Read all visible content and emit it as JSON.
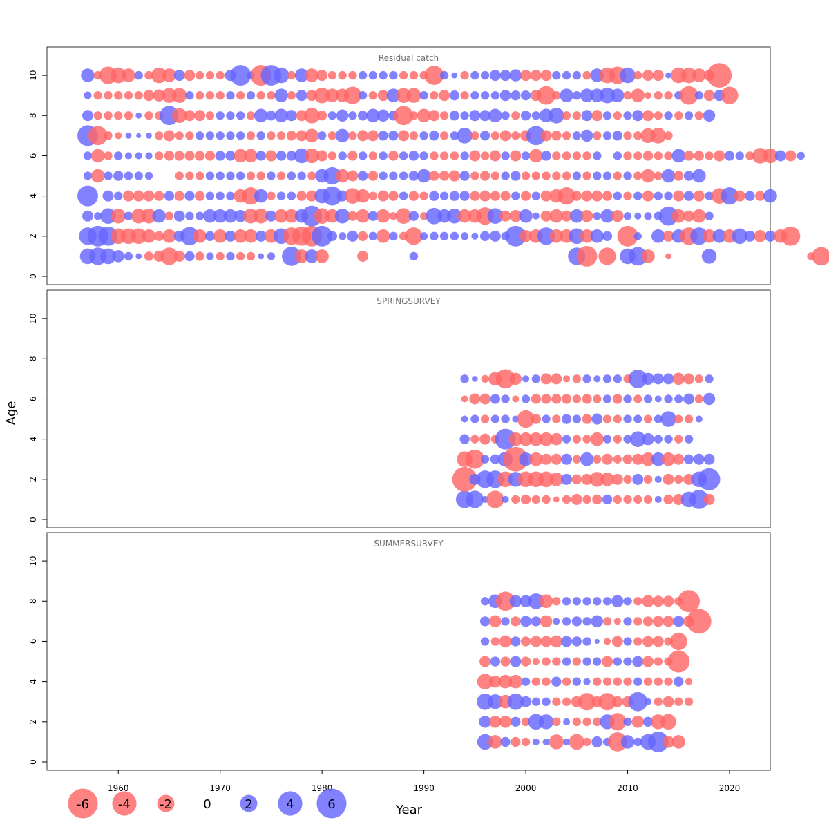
{
  "chart_data": {
    "type": "bubble",
    "xlabel": "Year",
    "ylabel": "Age",
    "xlim": [
      1953,
      2024
    ],
    "ylim": [
      0,
      11
    ],
    "x_ticks": [
      1960,
      1970,
      1980,
      1990,
      2000,
      2010,
      2020
    ],
    "y_ticks": [
      0,
      2,
      4,
      6,
      8,
      10
    ],
    "colors": {
      "positive": "#6666ff",
      "negative": "#ff6666"
    },
    "legend": {
      "values": [
        -6,
        -4,
        -2,
        0,
        2,
        4,
        6
      ],
      "labels": [
        "-6",
        "-4",
        "-2",
        "0",
        "2",
        "4",
        "6"
      ]
    },
    "panels": [
      {
        "title": "Residual catch",
        "ages": [
          1,
          2,
          3,
          4,
          5,
          6,
          7,
          8,
          9,
          10
        ],
        "start_year": 1957,
        "rows": {
          "1": [
            2.0,
            2.5,
            2.0,
            1.2,
            0.6,
            0.3,
            -0.7,
            -1.0,
            -2.5,
            -1.0,
            0.8,
            -0.7,
            0.5,
            -0.6,
            0.6,
            -0.6,
            -0.6,
            0.3,
            0.5,
            0,
            3.0,
            -1.5,
            1.5,
            -1.5,
            0,
            0,
            0,
            -1.0,
            0,
            0,
            0,
            0,
            0.6,
            0,
            0,
            0,
            0,
            0,
            0,
            0,
            0,
            0,
            0,
            0,
            0,
            0,
            0,
            0,
            2.5,
            -3.5,
            0,
            -2.5,
            0,
            2.0,
            2.8,
            -1.5,
            0,
            -0.3,
            0,
            0,
            0,
            1.8,
            0,
            0,
            0,
            0,
            0,
            0,
            0,
            0,
            0,
            -0.5,
            -2.8,
            0
          ],
          "2": [
            2.5,
            3.5,
            3.0,
            -2.0,
            -2.0,
            -2.0,
            -1.5,
            -0.8,
            -1.5,
            1.0,
            2.8,
            -1.5,
            0.8,
            -1.5,
            1.0,
            -1.5,
            -1.5,
            1.0,
            -1.5,
            2.0,
            -2.5,
            -3.0,
            -3.5,
            3.5,
            0.8,
            0.5,
            1.0,
            -0.8,
            0.6,
            -1.5,
            0.6,
            -0.6,
            -2.5,
            0.5,
            0.6,
            0.6,
            0.6,
            0.5,
            0.4,
            0.8,
            1.0,
            0.6,
            3.5,
            -1.2,
            -1.5,
            2.5,
            -1.5,
            -1.5,
            2.0,
            -1.5,
            1.5,
            0.8,
            0,
            -3.5,
            0.5,
            0,
            1.5,
            -1.0,
            1.5,
            -2.5,
            2.5,
            -1.5,
            1.5,
            -1.5,
            2.0,
            1.0,
            -1.2,
            1.0,
            -1.5,
            -3.0,
            0
          ],
          "3": [
            1.0,
            0.5,
            2.0,
            -1.8,
            0.6,
            -1.8,
            -1.8,
            1.5,
            -0.6,
            1.0,
            0.6,
            0.6,
            1.5,
            1.5,
            1.5,
            1.2,
            -1.8,
            -1.8,
            1.0,
            -1.5,
            -1.5,
            1.5,
            3.5,
            -2.0,
            -1.5,
            1.8,
            -0.8,
            -1.5,
            0.8,
            -1.5,
            -0.5,
            -2.0,
            0.8,
            -0.5,
            2.2,
            1.5,
            1.8,
            -1.5,
            -1.5,
            -2.5,
            2.0,
            -1.0,
            -1.2,
            1.5,
            0.4,
            -1.0,
            -1.5,
            -1.0,
            1.5,
            -1.2,
            0.5,
            1.5,
            -1.2,
            0.5,
            0.4,
            0.5,
            0.6,
            3.0,
            -1.5,
            -1.0,
            -1.5,
            0.6,
            0
          ],
          "4": [
            3.5,
            0,
            1.0,
            0.6,
            -1.0,
            -1.0,
            -1.0,
            -0.8,
            0.8,
            -0.8,
            0.8,
            -0.8,
            0.6,
            0.6,
            0.6,
            -1.5,
            -2.5,
            1.5,
            -0.6,
            0.6,
            0.6,
            -0.8,
            -1.0,
            1.8,
            3.0,
            1.0,
            -2.0,
            -1.5,
            -0.6,
            -1.0,
            -0.8,
            0.6,
            -0.8,
            -0.6,
            0.8,
            0.6,
            0.8,
            0.8,
            -0.8,
            -1.0,
            -0.8,
            -0.8,
            0.6,
            -0.8,
            0.6,
            -1.0,
            -1.5,
            -2.5,
            -0.8,
            -1.0,
            -1.0,
            -0.8,
            0.6,
            -0.6,
            0.6,
            -1.0,
            0.6,
            0.6,
            -1.0,
            0.8,
            -1.0,
            0.6,
            -2.0,
            2.5,
            -1.0,
            0.8,
            -0.8,
            1.5
          ],
          "5": [
            0.6,
            -1.5,
            0.6,
            0.8,
            0.6,
            0.6,
            0.5,
            0,
            0,
            -0.6,
            -0.6,
            -0.6,
            0.6,
            0.6,
            0.6,
            0.6,
            -0.6,
            -0.6,
            0.6,
            -0.6,
            0.6,
            0.6,
            -0.6,
            1.5,
            2.5,
            -1.5,
            -1.0,
            0.8,
            -0.8,
            0.6,
            0.6,
            0.6,
            0.8,
            1.5,
            -0.8,
            -0.8,
            -1.0,
            0.8,
            -0.6,
            -0.8,
            -0.6,
            0.6,
            0.8,
            -0.6,
            -0.6,
            -0.6,
            -0.6,
            -0.6,
            0.6,
            -0.6,
            0.6,
            0.6,
            -0.6,
            0.6,
            -0.6,
            -1.5,
            -0.6,
            1.5,
            -0.8,
            0.8,
            1.5
          ],
          "6": [
            0.6,
            -1.5,
            -0.6,
            0.6,
            0.4,
            0.4,
            0.4,
            -0.6,
            -0.8,
            -0.8,
            -0.8,
            -0.8,
            -0.8,
            0.8,
            0.8,
            -1.5,
            -1.5,
            0.8,
            -1.0,
            0.8,
            0.8,
            1.8,
            -1.8,
            -1.0,
            -0.6,
            0.6,
            -0.8,
            0.6,
            -0.6,
            0.6,
            -0.8,
            0.6,
            0.8,
            0.6,
            -0.6,
            -0.6,
            -0.6,
            0.6,
            -1.0,
            -0.6,
            -1.0,
            0.6,
            -1.0,
            0.6,
            -1.5,
            0.8,
            -0.6,
            -0.6,
            -0.6,
            -0.6,
            0.6,
            0,
            0.6,
            -0.6,
            -0.6,
            -0.8,
            -0.6,
            -0.6,
            1.5,
            -0.8,
            -0.8,
            -0.6,
            -1.0,
            0.8,
            0.6,
            -0.6,
            -2.0,
            -1.8,
            1.0,
            -1.0,
            0.5
          ],
          "7": [
            3.5,
            -3.0,
            -0.6,
            -0.4,
            0.3,
            0.2,
            0.3,
            -0.6,
            -1.0,
            -0.6,
            -0.6,
            0.6,
            0.6,
            0.6,
            0.6,
            0.6,
            -0.6,
            0.6,
            -0.6,
            -0.6,
            -0.8,
            -1.0,
            -1.5,
            0.6,
            -0.6,
            1.5,
            -0.6,
            -1.0,
            -1.0,
            0.8,
            0.8,
            -1.0,
            -0.6,
            0.6,
            0.8,
            -0.6,
            0.6,
            2.0,
            -0.6,
            0.8,
            -0.6,
            -1.0,
            -0.6,
            -1.0,
            3.0,
            -1.0,
            -0.8,
            -0.6,
            0.6,
            1.2,
            -0.6,
            0.6,
            0.8,
            -0.6,
            -0.6,
            -1.8,
            -2.0,
            -0.6
          ],
          "8": [
            1.0,
            -0.6,
            -0.6,
            -0.6,
            -0.6,
            0.3,
            -0.6,
            -0.6,
            3.0,
            -1.8,
            -1.0,
            -1.0,
            -0.6,
            0.6,
            0.6,
            0.6,
            -0.6,
            1.5,
            0.8,
            1.5,
            1.0,
            -1.0,
            -2.0,
            -0.8,
            0.6,
            1.2,
            0.6,
            0.8,
            1.5,
            1.2,
            0.8,
            -3.0,
            -0.6,
            -1.5,
            -1.0,
            -0.6,
            0.8,
            0.6,
            1.0,
            1.0,
            1.5,
            0.6,
            -0.6,
            0.8,
            0.6,
            1.5,
            2.0,
            -0.6,
            -0.6,
            1.0,
            -1.0,
            0.6,
            -0.6,
            0.6,
            1.0,
            -1.0,
            -0.6,
            0.6,
            -0.6,
            0.6,
            -0.6,
            1.2
          ],
          "9": [
            0.5,
            -0.6,
            -0.6,
            -0.6,
            -0.6,
            -0.6,
            -1.0,
            -1.2,
            -1.8,
            -1.8,
            0.6,
            -0.6,
            -0.6,
            -0.6,
            0.6,
            -0.6,
            0.6,
            -0.6,
            -0.6,
            1.5,
            -0.6,
            1.0,
            -1.0,
            -2.0,
            -1.5,
            -1.5,
            -2.5,
            0.6,
            -0.6,
            -1.0,
            1.5,
            -1.8,
            -1.8,
            0.6,
            -0.6,
            -1.0,
            0.8,
            -0.6,
            0.6,
            0.6,
            0.6,
            1.0,
            0.8,
            0.8,
            -1.0,
            -2.8,
            -0.6,
            1.5,
            0.6,
            1.5,
            1.5,
            2.0,
            1.5,
            -0.6,
            -1.5,
            -0.4,
            -0.6,
            -0.6,
            0.6,
            -2.8,
            0.6,
            -1.0,
            1.0,
            -2.5,
            0
          ],
          "10": [
            1.5,
            -0.6,
            -2.5,
            -2.0,
            -1.5,
            0.6,
            -0.6,
            -2.0,
            -1.5,
            1.0,
            -1.0,
            -0.6,
            -0.6,
            -0.6,
            1.0,
            3.5,
            0.5,
            -3.5,
            3.5,
            2.0,
            -0.6,
            1.5,
            -1.5,
            -1.0,
            -0.6,
            -0.6,
            -0.6,
            0.6,
            0.6,
            0.6,
            0.6,
            -0.6,
            -0.6,
            -0.6,
            -3.0,
            0.6,
            0.3,
            -0.6,
            0.6,
            0.6,
            1.0,
            1.0,
            1.2,
            -1.0,
            -1.0,
            -1.0,
            0.6,
            0.6,
            0.6,
            -0.6,
            1.5,
            -2.0,
            -2.5,
            2.0,
            -0.6,
            -1.0,
            -1.0,
            0.3,
            -2.0,
            -2.0,
            -1.5,
            -1.0,
            -5.0
          ]
        }
      },
      {
        "title": "SPRINGSURVEY",
        "ages": [
          1,
          2,
          3,
          4,
          5,
          6,
          7
        ],
        "start_year": 1994,
        "rows": {
          "1": [
            2.5,
            2.5,
            0.4,
            -2.5,
            0.4,
            -0.6,
            -0.8,
            -0.6,
            -0.6,
            -0.3,
            -0.6,
            -1.0,
            -0.6,
            -0.8,
            0.8,
            -0.6,
            -0.6,
            -0.6,
            -0.6,
            0.4,
            -0.8,
            -1.0,
            2.0,
            3.0,
            -1.0
          ],
          "2": [
            -5.0,
            1.0,
            2.5,
            2.5,
            -2.0,
            1.8,
            -2.0,
            -2.0,
            -2.0,
            -1.5,
            1.0,
            -0.8,
            -1.0,
            -1.8,
            -1.5,
            -1.0,
            -0.6,
            1.0,
            -0.6,
            0.4,
            -1.0,
            -0.6,
            -1.0,
            2.0,
            4.0
          ],
          "3": [
            -2.0,
            -3.0,
            0.6,
            0.8,
            1.8,
            -5.0,
            1.5,
            -1.5,
            -1.0,
            -1.0,
            1.0,
            -0.6,
            1.5,
            -0.6,
            -1.0,
            -0.6,
            -0.8,
            -1.0,
            -1.5,
            1.5,
            -1.5,
            -1.0,
            0.8,
            1.0,
            1.0
          ],
          "4": [
            0.8,
            -0.6,
            -1.0,
            -0.6,
            3.5,
            -1.5,
            -1.5,
            -1.5,
            -1.5,
            -1.2,
            0.6,
            -0.6,
            -0.6,
            -1.5,
            0.6,
            -0.6,
            0.6,
            2.0,
            1.2,
            0.6,
            0.6,
            -0.6,
            0.6
          ],
          "5": [
            0.4,
            0.6,
            -0.6,
            0.6,
            0.6,
            0.4,
            -2.5,
            -0.8,
            0.6,
            -0.6,
            0.8,
            0.6,
            -0.8,
            1.0,
            -0.6,
            -0.6,
            0.6,
            0.6,
            -0.6,
            0.6,
            2.0,
            -0.6,
            -0.6,
            0.4
          ],
          "6": [
            -0.4,
            -1.0,
            -1.0,
            0.8,
            0.6,
            -0.4,
            0.6,
            -0.8,
            -0.8,
            -0.8,
            -0.8,
            -0.6,
            -0.8,
            -0.6,
            0.6,
            -0.8,
            0.6,
            -0.6,
            0.6,
            0.4,
            0.6,
            0.6,
            1.0,
            -0.6,
            1.2
          ],
          "7": [
            0.6,
            0.3,
            -0.5,
            -1.5,
            -3.0,
            -1.2,
            0.4,
            0.6,
            -1.0,
            -1.0,
            -0.4,
            -0.6,
            0.6,
            0.4,
            0.6,
            0.6,
            -0.6,
            2.8,
            1.2,
            1.0,
            1.0,
            -1.2,
            -1.0,
            -0.6,
            0.6
          ]
        }
      },
      {
        "title": "SUMMERSURVEY",
        "ages": [
          1,
          2,
          3,
          4,
          5,
          6,
          7,
          8
        ],
        "start_year": 1996,
        "rows": {
          "1": [
            2.0,
            -1.5,
            0.8,
            -0.8,
            -0.6,
            0.4,
            0.4,
            -1.8,
            0.4,
            -2.0,
            -0.6,
            1.0,
            0.6,
            -3.0,
            1.5,
            0.6,
            2.0,
            3.5,
            -1.2,
            -1.5
          ],
          "2": [
            1.2,
            -1.2,
            -1.2,
            0.8,
            -0.6,
            2.0,
            1.8,
            -0.6,
            0.4,
            -0.6,
            -0.6,
            -0.6,
            1.8,
            -2.5,
            0.6,
            -1.2,
            0.8,
            -1.8,
            -2.0
          ],
          "3": [
            2.2,
            1.8,
            -1.5,
            2.2,
            1.0,
            0.6,
            0.6,
            -0.6,
            -0.6,
            -1.0,
            -2.5,
            -1.0,
            -2.5,
            -1.0,
            -1.0,
            3.0,
            0.4,
            -0.6,
            -1.0,
            -0.6,
            -0.6
          ],
          "4": [
            -2.0,
            -1.2,
            -1.5,
            -1.5,
            0.6,
            -0.6,
            -0.6,
            0.8,
            -0.6,
            0.6,
            0.4,
            -0.6,
            -0.6,
            -0.6,
            -0.6,
            0.6,
            -0.6,
            -0.6,
            -0.6,
            0.8,
            -0.4
          ],
          "5": [
            -1.0,
            0.8,
            -0.8,
            1.0,
            -0.8,
            -0.4,
            -0.6,
            -0.6,
            0.6,
            -0.6,
            0.6,
            0.6,
            -1.0,
            0.6,
            0.6,
            1.0,
            -1.0,
            -0.6,
            -0.6,
            -4.0
          ],
          "6": [
            0.6,
            -0.6,
            -1.2,
            0.8,
            -0.8,
            -1.0,
            -1.0,
            -1.2,
            1.0,
            0.8,
            0.6,
            0.2,
            -0.4,
            -1.0,
            0.6,
            -0.6,
            -1.0,
            -1.0,
            -0.6,
            -2.5
          ],
          "7": [
            0.8,
            -1.2,
            0.6,
            -0.8,
            1.0,
            0.8,
            -1.2,
            0.4,
            0.6,
            0.8,
            0.6,
            1.2,
            -0.6,
            -0.4,
            0.6,
            -0.6,
            -0.8,
            -1.0,
            -1.0,
            1.0,
            -1.0,
            -5.0
          ],
          "8": [
            0.6,
            1.5,
            -3.0,
            1.2,
            1.2,
            2.0,
            -1.5,
            -0.6,
            0.6,
            0.6,
            0.6,
            0.6,
            0.6,
            1.2,
            0.6,
            -0.6,
            -1.2,
            -1.0,
            -1.0,
            -0.6,
            -4.0
          ]
        }
      }
    ]
  }
}
